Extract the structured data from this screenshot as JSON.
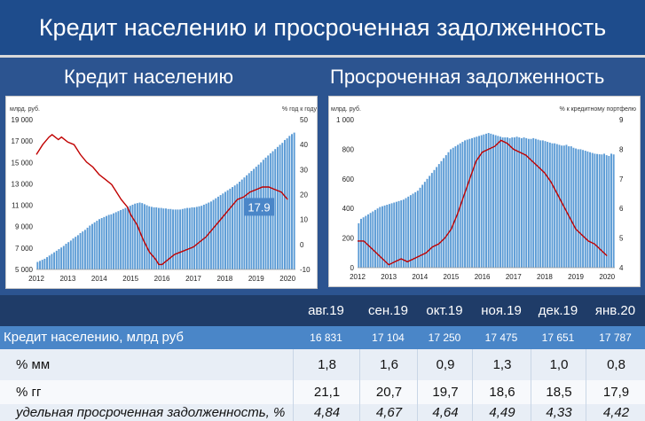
{
  "title": "Кредит населению и просроченная задолженность",
  "left": {
    "section_title": "Кредит населению",
    "left_unit": "млрд. руб.",
    "right_unit": "% год к году",
    "callout": "17.9"
  },
  "right": {
    "section_title": "Просроченная задолженность",
    "left_unit": "млрд. руб.",
    "right_unit": "% к кредитному портфелю"
  },
  "colors": {
    "bar": "#5b9bd5",
    "line": "#c00000",
    "accent": "#4a86c8"
  },
  "chart_data": [
    {
      "type": "bar",
      "title": "Кредит населению",
      "ylabel": "млрд. руб.",
      "y2label": "% год к году",
      "ylim": [
        5000,
        19000
      ],
      "y2lim": [
        -10,
        50
      ],
      "yticks": [
        "5 000",
        "7 000",
        "9 000",
        "11 000",
        "13 000",
        "15 000",
        "17 000",
        "19 000"
      ],
      "y2ticks": [
        "-10",
        "0",
        "10",
        "20",
        "30",
        "40",
        "50"
      ],
      "xticks": [
        "2012",
        "2013",
        "2014",
        "2015",
        "2016",
        "2017",
        "2018",
        "2019",
        "2020"
      ],
      "x_start": 2012.0,
      "series": [
        {
          "kind": "bar",
          "axis": "left",
          "values": [
            5700,
            5800,
            5900,
            6000,
            6150,
            6300,
            6450,
            6600,
            6750,
            6900,
            7050,
            7200,
            7400,
            7550,
            7700,
            7900,
            8050,
            8200,
            8400,
            8550,
            8700,
            8900,
            9100,
            9250,
            9400,
            9550,
            9700,
            9800,
            9900,
            10000,
            10100,
            10150,
            10250,
            10350,
            10450,
            10550,
            10650,
            10750,
            10850,
            10950,
            11050,
            11150,
            11200,
            11250,
            11200,
            11100,
            11000,
            10900,
            10850,
            10800,
            10800,
            10750,
            10750,
            10700,
            10700,
            10650,
            10650,
            10600,
            10600,
            10600,
            10600,
            10650,
            10700,
            10750,
            10750,
            10800,
            10800,
            10850,
            10900,
            10950,
            11050,
            11150,
            11250,
            11350,
            11500,
            11650,
            11800,
            11950,
            12100,
            12250,
            12400,
            12550,
            12700,
            12850,
            13000,
            13200,
            13400,
            13600,
            13800,
            14000,
            14200,
            14400,
            14600,
            14800,
            15000,
            15250,
            15450,
            15650,
            15850,
            16050,
            16250,
            16450,
            16650,
            16830,
            17100,
            17250,
            17480,
            17650,
            17790
          ]
        },
        {
          "kind": "line",
          "axis": "right",
          "values": [
            [
              2012.0,
              36
            ],
            [
              2012.2,
              40
            ],
            [
              2012.4,
              43
            ],
            [
              2012.5,
              44
            ],
            [
              2012.7,
              42
            ],
            [
              2012.8,
              43
            ],
            [
              2013.0,
              41
            ],
            [
              2013.2,
              40
            ],
            [
              2013.4,
              36
            ],
            [
              2013.6,
              33
            ],
            [
              2013.8,
              31
            ],
            [
              2014.0,
              28
            ],
            [
              2014.2,
              26
            ],
            [
              2014.4,
              24
            ],
            [
              2014.5,
              22
            ],
            [
              2014.7,
              18
            ],
            [
              2014.9,
              15
            ],
            [
              2015.0,
              12
            ],
            [
              2015.2,
              8
            ],
            [
              2015.4,
              2
            ],
            [
              2015.6,
              -3
            ],
            [
              2015.8,
              -6
            ],
            [
              2015.9,
              -8
            ],
            [
              2016.0,
              -8
            ],
            [
              2016.2,
              -6
            ],
            [
              2016.4,
              -4
            ],
            [
              2016.6,
              -3
            ],
            [
              2016.8,
              -2
            ],
            [
              2017.0,
              -1
            ],
            [
              2017.2,
              1
            ],
            [
              2017.4,
              3
            ],
            [
              2017.6,
              6
            ],
            [
              2017.8,
              9
            ],
            [
              2018.0,
              12
            ],
            [
              2018.2,
              15
            ],
            [
              2018.4,
              18
            ],
            [
              2018.6,
              19
            ],
            [
              2018.8,
              21
            ],
            [
              2019.0,
              22
            ],
            [
              2019.2,
              23
            ],
            [
              2019.4,
              23
            ],
            [
              2019.6,
              22
            ],
            [
              2019.8,
              21
            ],
            [
              2020.0,
              18
            ]
          ]
        }
      ]
    },
    {
      "type": "bar",
      "title": "Просроченная задолженность",
      "ylabel": "млрд. руб.",
      "y2label": "% к кредитному портфелю",
      "ylim": [
        0,
        1000
      ],
      "y2lim": [
        4,
        9
      ],
      "yticks": [
        "0",
        "200",
        "400",
        "600",
        "800",
        "1 000"
      ],
      "y2ticks": [
        "4",
        "5",
        "6",
        "7",
        "8",
        "9"
      ],
      "xticks": [
        "2012",
        "2013",
        "2014",
        "2015",
        "2016",
        "2017",
        "2018",
        "2019",
        "2020"
      ],
      "x_start": 2012.0,
      "series": [
        {
          "kind": "bar",
          "axis": "left",
          "values": [
            300,
            330,
            340,
            350,
            360,
            370,
            380,
            390,
            400,
            410,
            415,
            420,
            425,
            430,
            435,
            440,
            445,
            450,
            455,
            460,
            470,
            480,
            490,
            500,
            510,
            520,
            540,
            560,
            580,
            600,
            620,
            640,
            660,
            680,
            700,
            720,
            740,
            760,
            780,
            800,
            810,
            820,
            830,
            840,
            850,
            860,
            865,
            870,
            875,
            880,
            885,
            890,
            895,
            900,
            905,
            910,
            905,
            900,
            895,
            890,
            885,
            880,
            880,
            880,
            875,
            880,
            880,
            885,
            880,
            875,
            880,
            875,
            870,
            870,
            875,
            870,
            865,
            860,
            860,
            855,
            850,
            845,
            840,
            840,
            835,
            830,
            825,
            825,
            830,
            820,
            820,
            810,
            805,
            800,
            800,
            795,
            790,
            785,
            780,
            775,
            770,
            768,
            766,
            765,
            770,
            760,
            755,
            770,
            765
          ]
        },
        {
          "kind": "line",
          "axis": "right",
          "values": [
            [
              2012.0,
              4.9
            ],
            [
              2012.2,
              4.9
            ],
            [
              2012.4,
              4.7
            ],
            [
              2012.6,
              4.5
            ],
            [
              2012.8,
              4.3
            ],
            [
              2013.0,
              4.1
            ],
            [
              2013.2,
              4.2
            ],
            [
              2013.4,
              4.3
            ],
            [
              2013.6,
              4.2
            ],
            [
              2013.8,
              4.3
            ],
            [
              2014.0,
              4.4
            ],
            [
              2014.2,
              4.5
            ],
            [
              2014.4,
              4.7
            ],
            [
              2014.6,
              4.8
            ],
            [
              2014.8,
              5.0
            ],
            [
              2015.0,
              5.3
            ],
            [
              2015.2,
              5.8
            ],
            [
              2015.4,
              6.4
            ],
            [
              2015.6,
              7.0
            ],
            [
              2015.8,
              7.6
            ],
            [
              2016.0,
              7.9
            ],
            [
              2016.2,
              8.0
            ],
            [
              2016.4,
              8.1
            ],
            [
              2016.6,
              8.3
            ],
            [
              2016.8,
              8.2
            ],
            [
              2017.0,
              8.0
            ],
            [
              2017.2,
              7.9
            ],
            [
              2017.4,
              7.8
            ],
            [
              2017.6,
              7.6
            ],
            [
              2017.8,
              7.4
            ],
            [
              2018.0,
              7.2
            ],
            [
              2018.2,
              6.9
            ],
            [
              2018.4,
              6.5
            ],
            [
              2018.6,
              6.1
            ],
            [
              2018.8,
              5.7
            ],
            [
              2019.0,
              5.3
            ],
            [
              2019.2,
              5.1
            ],
            [
              2019.4,
              4.9
            ],
            [
              2019.6,
              4.8
            ],
            [
              2019.8,
              4.6
            ],
            [
              2020.0,
              4.4
            ]
          ]
        }
      ]
    },
    {
      "type": "table",
      "columns": [
        "авг.19",
        "сен.19",
        "окт.19",
        "ноя.19",
        "дек.19",
        "янв.20"
      ],
      "rows": [
        {
          "label": "Кредит населению, млрд руб",
          "values": [
            "16 831",
            "17 104",
            "17 250",
            "17 475",
            "17 651",
            "17 787"
          ]
        },
        {
          "label": "% мм",
          "values": [
            "1,8",
            "1,6",
            "0,9",
            "1,3",
            "1,0",
            "0,8"
          ]
        },
        {
          "label": "% гг",
          "values": [
            "21,1",
            "20,7",
            "19,7",
            "18,6",
            "18,5",
            "17,9"
          ]
        },
        {
          "label": "удельная просроченная задолженность, %",
          "values": [
            "4,84",
            "4,67",
            "4,64",
            "4,49",
            "4,33",
            "4,42"
          ]
        }
      ]
    }
  ]
}
